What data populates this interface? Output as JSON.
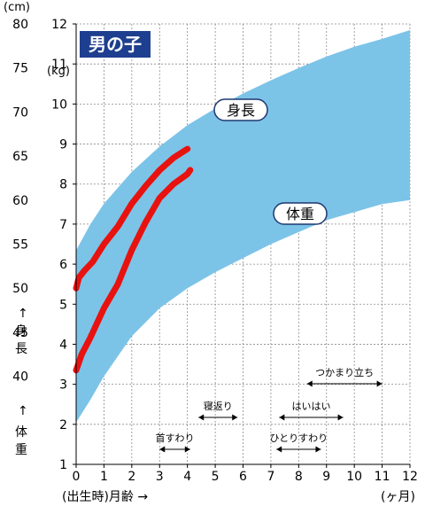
{
  "chart_data": {
    "type": "line",
    "title": "男の子",
    "height_unit": "(cm)",
    "weight_unit": "(kg)",
    "height_axis_title": "↑ 身長",
    "weight_axis_title": "↑ 体重",
    "x_axis_title": "(出生時)月齢 →",
    "x_unit": "(ヶ月)",
    "x_ticks": [
      0,
      1,
      2,
      3,
      4,
      5,
      6,
      7,
      8,
      9,
      10,
      11,
      12
    ],
    "xlim": [
      0,
      12
    ],
    "height_ticks": [
      40,
      45,
      50,
      55,
      60,
      65,
      70,
      75,
      80
    ],
    "height_ylim": [
      30,
      80
    ],
    "weight_ticks": [
      1,
      2,
      3,
      4,
      5,
      6,
      7,
      8,
      9,
      10,
      11,
      12
    ],
    "weight_ylim": [
      1,
      12
    ],
    "bands": [
      {
        "name": "身長",
        "axis": "height",
        "color": "#7cc3e8",
        "x": [
          0,
          0.5,
          1,
          2,
          3,
          4,
          5,
          6,
          7,
          8,
          9,
          10,
          11,
          12
        ],
        "upper": [
          54.3,
          57.2,
          59.6,
          63.2,
          66.1,
          68.5,
          70.4,
          72.1,
          73.6,
          75.0,
          76.3,
          77.4,
          78.3,
          79.3
        ],
        "lower": [
          44.0,
          46.5,
          48.7,
          52.6,
          55.6,
          58.4,
          60.4,
          62.4,
          63.9,
          65.2,
          66.5,
          67.6,
          68.6,
          69.5
        ]
      },
      {
        "name": "体重",
        "axis": "weight",
        "color": "#7cc3e8",
        "x": [
          0,
          0.5,
          1,
          2,
          3,
          4,
          5,
          6,
          7,
          8,
          9,
          10,
          11,
          12
        ],
        "upper": [
          4.4,
          5.4,
          6.4,
          7.7,
          8.6,
          9.2,
          9.6,
          10.0,
          10.3,
          10.5,
          10.7,
          10.85,
          10.95,
          11.05
        ],
        "lower": [
          2.05,
          2.6,
          3.2,
          4.2,
          4.9,
          5.4,
          5.8,
          6.15,
          6.5,
          6.8,
          7.1,
          7.3,
          7.5,
          7.6
        ]
      }
    ],
    "series": [
      {
        "axis": "height",
        "color": "#e8120f",
        "x": [
          0,
          0.1,
          0.3,
          0.6,
          1.0,
          1.5,
          2.0,
          2.5,
          3.0,
          3.5,
          4.0
        ],
        "values": [
          50.0,
          51.2,
          52.0,
          53.0,
          55.0,
          57.0,
          59.6,
          61.6,
          63.4,
          64.8,
          65.8
        ]
      },
      {
        "axis": "weight",
        "color": "#e8120f",
        "x": [
          0,
          0.2,
          0.5,
          1.0,
          1.5,
          2.0,
          2.5,
          3.0,
          3.5,
          4.0,
          4.1
        ],
        "values": [
          3.35,
          3.75,
          4.15,
          4.9,
          5.5,
          6.35,
          7.05,
          7.65,
          8.0,
          8.25,
          8.35
        ]
      }
    ],
    "milestones": [
      {
        "label": "首すわり",
        "start": 3.0,
        "end": 4.1
      },
      {
        "label": "寝返り",
        "start": 4.4,
        "end": 5.8
      },
      {
        "label": "ひとりすわり",
        "start": 7.2,
        "end": 8.8
      },
      {
        "label": "はいはい",
        "start": 7.3,
        "end": 9.6
      },
      {
        "label": "つかまり立ち",
        "start": 8.3,
        "end": 11.0
      }
    ]
  }
}
